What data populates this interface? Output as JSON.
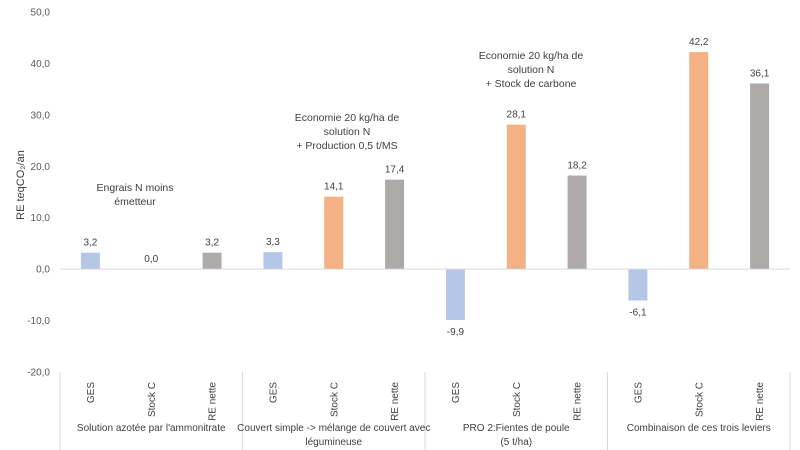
{
  "chart_data": {
    "type": "bar",
    "ylabel": "RE teqCO₂/an",
    "ylim": [
      -20,
      50
    ],
    "ytick_step": 10,
    "ytick_labels": [
      "-20,0",
      "-10,0",
      "0,0",
      "10,0",
      "20,0",
      "30,0",
      "40,0",
      "50,0"
    ],
    "grid": false,
    "groups": [
      {
        "label": "Solution azotée par l'ammonitrate",
        "label_lines": [
          "Solution azotée par l'ammonitrate"
        ],
        "annotation": [
          "Engrais N moins",
          "émetteur"
        ],
        "bars": [
          {
            "category": "GES",
            "value": 3.2,
            "label": "3,2"
          },
          {
            "category": "Stock C",
            "value": 0.0,
            "label": "0,0"
          },
          {
            "category": "RE nette",
            "value": 3.2,
            "label": "3,2"
          }
        ]
      },
      {
        "label": "Couvert simple -> mélange de couvert avec légumineuse",
        "label_lines": [
          "Couvert simple -> mélange de couvert avec",
          "légumineuse"
        ],
        "annotation": [
          "Economie 20 kg/ha de",
          "solution N",
          "+ Production 0,5 t/MS"
        ],
        "bars": [
          {
            "category": "GES",
            "value": 3.3,
            "label": "3,3"
          },
          {
            "category": "Stock C",
            "value": 14.1,
            "label": "14,1"
          },
          {
            "category": "RE nette",
            "value": 17.4,
            "label": "17,4"
          }
        ]
      },
      {
        "label": "PRO 2:Fientes de poule (5 t/ha)",
        "label_lines": [
          "PRO 2:Fientes de poule",
          "(5 t/ha)"
        ],
        "annotation": [
          "Economie 20 kg/ha de",
          "solution N",
          "+ Stock de carbone"
        ],
        "bars": [
          {
            "category": "GES",
            "value": -9.9,
            "label": "-9,9"
          },
          {
            "category": "Stock C",
            "value": 28.1,
            "label": "28,1"
          },
          {
            "category": "RE nette",
            "value": 18.2,
            "label": "18,2"
          }
        ]
      },
      {
        "label": "Combinaison de ces trois leviers",
        "label_lines": [
          "Combinaison de ces trois leviers"
        ],
        "annotation": [],
        "bars": [
          {
            "category": "GES",
            "value": -6.1,
            "label": "-6,1"
          },
          {
            "category": "Stock C",
            "value": 42.2,
            "label": "42,2"
          },
          {
            "category": "RE nette",
            "value": 36.1,
            "label": "36,1"
          }
        ]
      }
    ],
    "colors": {
      "GES": "#b4c7e7",
      "Stock C": "#f4b183",
      "RE nette": "#aeaaaa"
    }
  }
}
